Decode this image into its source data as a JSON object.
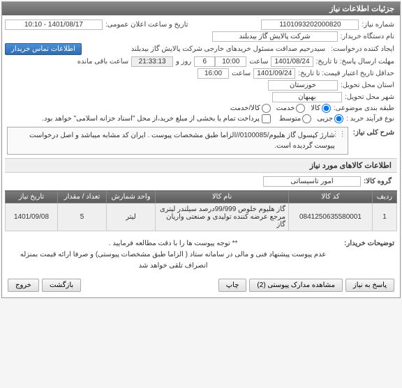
{
  "panel": {
    "title": "جزئیات اطلاعات نیاز"
  },
  "header": {
    "need_no_label": "شماره نیاز:",
    "need_no": "1101093202000820",
    "announce_label": "تاریخ و ساعت اعلان عمومی:",
    "announce_value": "1401/08/17 - 10:10",
    "buyer_label": "نام دستگاه خریدار:",
    "buyer_value": "شرکت پالایش گاز بیدبلند",
    "creator_label": "ایجاد کننده درخواست:",
    "creator_value": "سیدرحیم صداقت مسئول خریدهای خارجی شرکت پالایش گاز بیدبلند",
    "contact_btn": "اطلاعات تماس خریدار",
    "deadline_label": "مهلت ارسال پاسخ: تا تاریخ:",
    "deadline_date": "1401/08/24",
    "deadline_time_label": "ساعت",
    "deadline_time": "10:00",
    "days_label": "روز و",
    "days_value": "6",
    "remain_time": "21:33:13",
    "remain_label": "ساعت باقی مانده",
    "validity_label": "حداقل تاریخ اعتبار قیمت: تا تاریخ:",
    "validity_date": "1401/09/24",
    "validity_time_label": "ساعت",
    "validity_time": "16:00",
    "province_label": "استان محل تحویل:",
    "province_value": "خوزستان",
    "city_label": "شهر محل تحویل:",
    "city_value": "بهبهان",
    "category_label": "طبقه بندی موضوعی:",
    "cat_goods": "کالا",
    "cat_service": "خدمت",
    "cat_goods_service": "کالا/خدمت",
    "process_label": "نوع فرآیند خرید :",
    "process_partial": "جزیی",
    "process_medium": "متوسط",
    "payment_note": "پرداخت تمام یا بخشی از مبلغ خرید،از محل \"اسناد خزانه اسلامی\" خواهد بود."
  },
  "description": {
    "label": "شرح کلی نیاز:",
    "text": "شارژ کپسول گاز هلیوم/0100085//الزاما طبق مشخصات پیوست . ایران کد مشابه میباشد و اصل درخواست پیوست گردیده است."
  },
  "goods": {
    "title": "اطلاعات کالاهای مورد نیاز",
    "group_label": "گروه کالا:",
    "group_value": "امور تاسیساتی",
    "columns": [
      "ردیف",
      "کد کالا",
      "نام کالا",
      "واحد شمارش",
      "تعداد / مقدار",
      "تاریخ نیاز"
    ],
    "rows": [
      [
        "1",
        "0841250635580001",
        "گاز هلیوم خلوص 99/999درصد سیلندر لیتری مرجع عرضه کننده تولیدی و صنعتی واریان گاز",
        "لیتر",
        "5",
        "1401/09/08"
      ]
    ]
  },
  "buyer_notes": {
    "label": "توضیحات خریدار:",
    "line1": "** توجه پیوست ها  را با دقت مطالعه فرمایید .",
    "line2": "عدم  پیوست پیشنهاد فنی و مالی در سامانه ستاد ( الزاما طبق مشخصات پیوستی)  و صرفا ارائه قیمت بمنزله انصراف تلقی خواهد شد"
  },
  "footer": {
    "reply": "پاسخ به نیاز",
    "attachments": "مشاهده مدارک پیوستی (2)",
    "print": "چاپ",
    "back": "بازگشت",
    "exit": "خروج"
  },
  "colors": {
    "header_bg": "#6e6e6e",
    "btn_blue": "#3a7bc8",
    "border": "#aaaaaa",
    "th_bg": "#6a6a6a"
  }
}
